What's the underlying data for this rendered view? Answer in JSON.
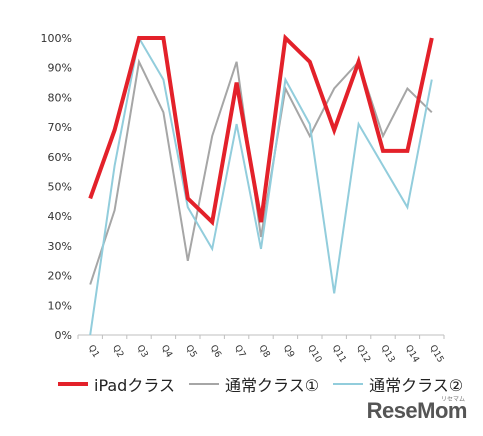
{
  "chart_data": {
    "type": "line",
    "categories": [
      "Q1",
      "Q2",
      "Q3",
      "Q4",
      "Q5",
      "Q6",
      "Q7",
      "Q8",
      "Q9",
      "Q10",
      "Q11",
      "Q12",
      "Q13",
      "Q14",
      "Q15"
    ],
    "ylim": [
      0,
      100
    ],
    "yticks": [
      "0%",
      "10%",
      "20%",
      "30%",
      "40%",
      "50%",
      "60%",
      "70%",
      "80%",
      "90%",
      "100%"
    ],
    "grid": false,
    "legend_position": "bottom",
    "series": [
      {
        "name": "iPadクラス",
        "color": "#e3212a",
        "width": 4,
        "values": [
          46,
          69,
          100,
          100,
          46,
          38,
          85,
          38,
          100,
          92,
          69,
          92,
          62,
          62,
          100
        ]
      },
      {
        "name": "通常クラス①",
        "color": "#a6a6a6",
        "width": 2,
        "values": [
          17,
          42,
          92,
          75,
          25,
          67,
          92,
          33,
          83,
          67,
          83,
          92,
          67,
          83,
          75
        ]
      },
      {
        "name": "通常クラス②",
        "color": "#92cddc",
        "width": 2,
        "values": [
          0,
          57,
          100,
          86,
          43,
          29,
          71,
          29,
          86,
          71,
          14,
          71,
          57,
          43,
          86
        ]
      }
    ]
  },
  "watermark": {
    "logo_text": "ReseMom",
    "logo_kana": "リセマム"
  }
}
